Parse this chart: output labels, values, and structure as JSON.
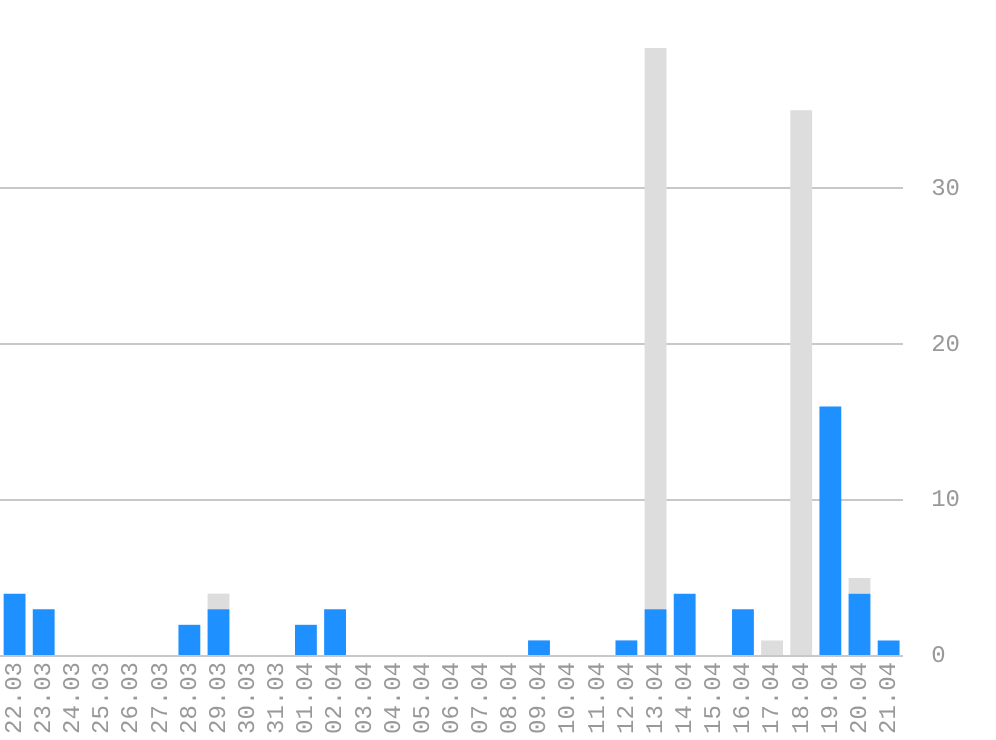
{
  "chart_data": {
    "type": "bar",
    "stacked": true,
    "categories": [
      "22.03",
      "23.03",
      "24.03",
      "25.03",
      "26.03",
      "27.03",
      "28.03",
      "29.03",
      "30.03",
      "31.03",
      "01.04",
      "02.04",
      "03.04",
      "04.04",
      "05.04",
      "06.04",
      "07.04",
      "08.04",
      "09.04",
      "10.04",
      "11.04",
      "12.04",
      "13.04",
      "14.04",
      "15.04",
      "16.04",
      "17.04",
      "18.04",
      "19.04",
      "20.04",
      "21.04"
    ],
    "series": [
      {
        "color": "#1e90ff",
        "values": [
          4,
          3,
          0,
          0,
          0,
          0,
          2,
          3,
          0,
          0,
          2,
          3,
          0,
          0,
          0,
          0,
          0,
          0,
          1,
          0,
          0,
          1,
          3,
          4,
          0,
          3,
          0,
          0,
          16,
          4,
          1
        ]
      },
      {
        "color": "#dddddd",
        "values": [
          0,
          0,
          0,
          0,
          0,
          0,
          0,
          1,
          0,
          0,
          0,
          0,
          0,
          0,
          0,
          0,
          0,
          0,
          0,
          0,
          0,
          0,
          36,
          0,
          0,
          0,
          1,
          35,
          0,
          1,
          0
        ]
      }
    ],
    "ylim": [
      0,
      39
    ],
    "yticks": [
      0,
      10,
      20,
      30
    ],
    "grid": "y",
    "legend": false
  }
}
